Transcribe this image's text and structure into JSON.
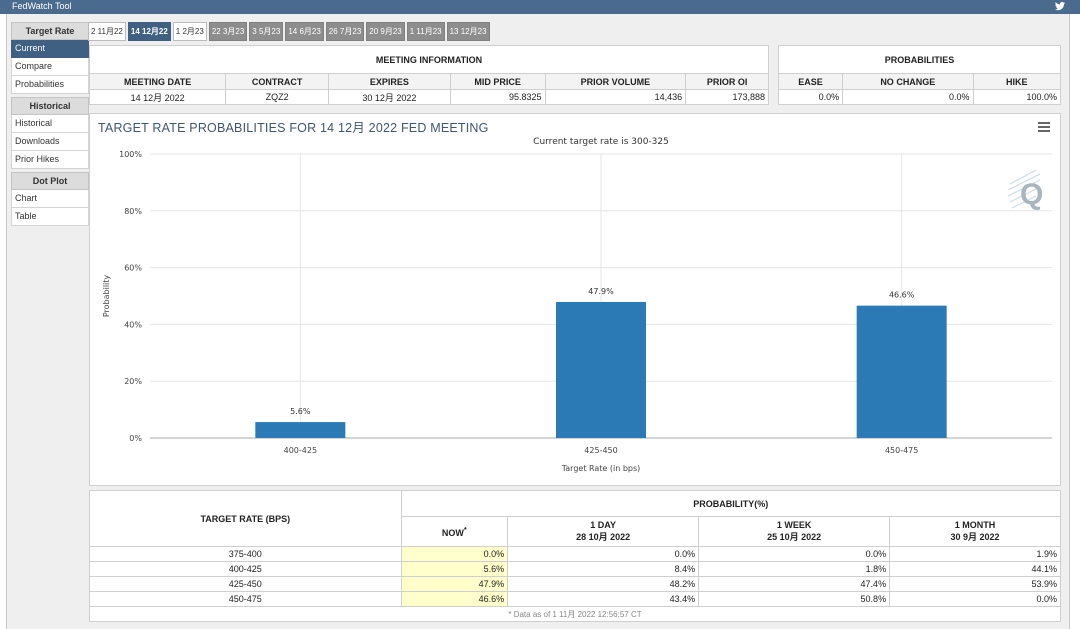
{
  "app": {
    "title": "FedWatch Tool"
  },
  "sidebar": {
    "sections": [
      {
        "header": "Target Rate",
        "items": [
          {
            "label": "Current",
            "active": true
          },
          {
            "label": "Compare"
          },
          {
            "label": "Probabilities"
          }
        ]
      },
      {
        "header": "Historical",
        "items": [
          {
            "label": "Historical"
          },
          {
            "label": "Downloads"
          },
          {
            "label": "Prior Hikes"
          }
        ]
      },
      {
        "header": "Dot Plot",
        "items": [
          {
            "label": "Chart"
          },
          {
            "label": "Table"
          }
        ]
      }
    ]
  },
  "tabs": [
    {
      "label": "2 11月22",
      "style": "white"
    },
    {
      "label": "14 12月22",
      "style": "active"
    },
    {
      "label": "1 2月23",
      "style": "white"
    },
    {
      "label": "22 3月23",
      "style": "gray"
    },
    {
      "label": "3 5月23",
      "style": "gray"
    },
    {
      "label": "14 6月23",
      "style": "gray"
    },
    {
      "label": "26 7月23",
      "style": "gray"
    },
    {
      "label": "20 9月23",
      "style": "gray"
    },
    {
      "label": "1 11月23",
      "style": "gray"
    },
    {
      "label": "13 12月23",
      "style": "gray"
    }
  ],
  "meeting": {
    "title": "MEETING INFORMATION",
    "headers": [
      "MEETING DATE",
      "CONTRACT",
      "EXPIRES",
      "MID PRICE",
      "PRIOR VOLUME",
      "PRIOR OI"
    ],
    "values": [
      "14 12月 2022",
      "ZQZ2",
      "30 12月 2022",
      "95.8325",
      "14,436",
      "173,888"
    ]
  },
  "probabilities": {
    "title": "PROBABILITIES",
    "headers": [
      "EASE",
      "NO CHANGE",
      "HIKE"
    ],
    "values": [
      "0.0%",
      "0.0%",
      "100.0%"
    ]
  },
  "chart": {
    "title": "TARGET RATE PROBABILITIES FOR 14 12月 2022 FED MEETING",
    "subtitle": "Current target rate is 300-325",
    "bar_color": "#2b79b5"
  },
  "chart_data": {
    "type": "bar",
    "categories": [
      "400-425",
      "425-450",
      "450-475"
    ],
    "values": [
      5.6,
      47.9,
      46.6
    ],
    "data_labels": [
      "5.6%",
      "47.9%",
      "46.6%"
    ],
    "xlabel": "Target Rate (in bps)",
    "ylabel": "Probability",
    "ylim": [
      0,
      100
    ],
    "yticks": [
      "0%",
      "20%",
      "40%",
      "60%",
      "80%",
      "100%"
    ],
    "grid": true
  },
  "bottom": {
    "rate_header": "TARGET RATE (BPS)",
    "prob_header": "PROBABILITY(%)",
    "col_headers": [
      {
        "line1": "NOW",
        "line2": "",
        "mark": "*"
      },
      {
        "line1": "1 DAY",
        "line2": "28 10月 2022"
      },
      {
        "line1": "1 WEEK",
        "line2": "25 10月 2022"
      },
      {
        "line1": "1 MONTH",
        "line2": "30 9月 2022"
      }
    ],
    "rows": [
      [
        "375-400",
        "0.0%",
        "0.0%",
        "0.0%",
        "1.9%"
      ],
      [
        "400-425",
        "5.6%",
        "8.4%",
        "1.8%",
        "44.1%"
      ],
      [
        "425-450",
        "47.9%",
        "48.2%",
        "47.4%",
        "53.9%"
      ],
      [
        "450-475",
        "46.6%",
        "43.4%",
        "50.8%",
        "0.0%"
      ]
    ],
    "footnote": "* Data as of 1 11月 2022 12:56:57 CT"
  }
}
